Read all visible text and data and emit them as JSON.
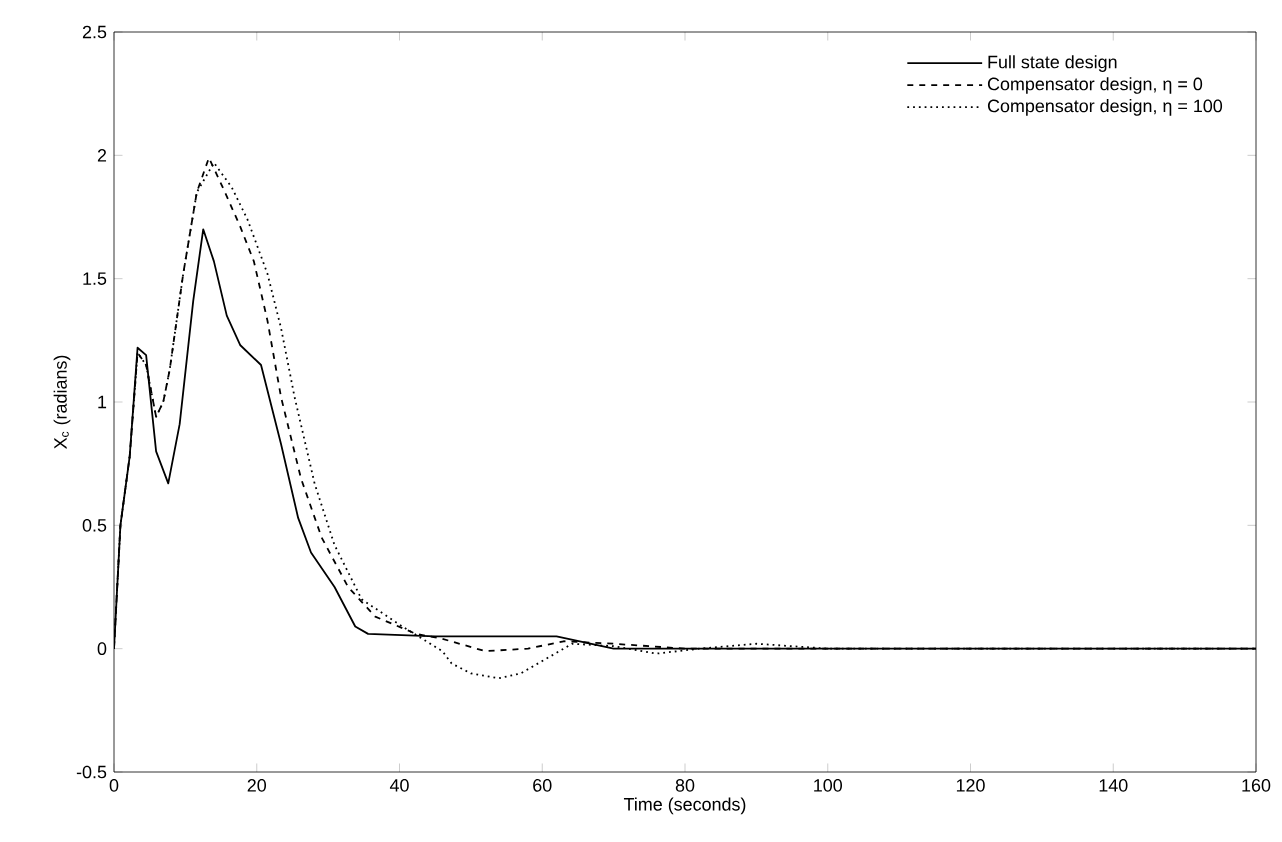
{
  "chart_data": {
    "type": "line",
    "xlabel": "Time (seconds)",
    "ylabel": "X$_{c}$ (radians)",
    "xlim": [
      0,
      160
    ],
    "ylim": [
      -0.5,
      2.5
    ],
    "xticks": [
      0,
      20,
      40,
      60,
      80,
      100,
      120,
      140,
      160
    ],
    "yticks": [
      -0.5,
      0,
      0.5,
      1,
      1.5,
      2,
      2.5
    ],
    "legend": "top right",
    "grid": false,
    "marker": "none",
    "series": [
      {
        "name": "Full state design",
        "color": "#000000",
        "line_style": "solid",
        "x": [
          0,
          0.9,
          2.2,
          3.3,
          4.5,
          5.9,
          7.6,
          9.2,
          11.1,
          12.5,
          14,
          15.8,
          17.7,
          20.6,
          23.4,
          25.8,
          27.6,
          30.9,
          33.8,
          35.6,
          45,
          55,
          62,
          70,
          80,
          100,
          120,
          140,
          160
        ],
        "values": [
          0,
          0.5,
          0.78,
          1.22,
          1.19,
          0.8,
          0.67,
          0.91,
          1.41,
          1.7,
          1.57,
          1.35,
          1.23,
          1.15,
          0.83,
          0.53,
          0.39,
          0.25,
          0.09,
          0.06,
          0.05,
          0.05,
          0.05,
          0,
          0,
          0,
          0,
          0,
          0
        ]
      },
      {
        "name": "Compensator design, η = 0",
        "color": "#000000",
        "line_style": "dashed",
        "x": [
          0,
          0.9,
          2.2,
          3.3,
          4.5,
          5.9,
          6.9,
          7.8,
          9.7,
          11.6,
          13.3,
          15.4,
          17.7,
          19.6,
          21.5,
          23.4,
          26.2,
          29.1,
          32.8,
          36.6,
          42.3,
          46,
          52,
          58,
          63,
          70,
          80,
          100,
          120,
          140,
          160
        ],
        "values": [
          0,
          0.5,
          0.78,
          1.2,
          1.15,
          0.94,
          1.0,
          1.13,
          1.52,
          1.85,
          1.99,
          1.86,
          1.71,
          1.57,
          1.33,
          1.02,
          0.69,
          0.45,
          0.25,
          0.13,
          0.06,
          0.04,
          -0.01,
          0,
          0.03,
          0.02,
          0,
          0,
          0,
          0,
          0
        ]
      },
      {
        "name": "Compensator design, η = 100",
        "color": "#000000",
        "line_style": "dotted",
        "x": [
          0,
          0.9,
          2.2,
          3.3,
          4.5,
          5.9,
          6.9,
          7.8,
          9.7,
          11.6,
          14,
          16.5,
          18.7,
          21.5,
          23.4,
          25.3,
          28.1,
          30.9,
          34.7,
          40.4,
          46,
          47.3,
          50,
          53.9,
          57,
          60,
          64.2,
          70,
          76,
          82,
          90,
          100,
          120,
          140,
          160
        ],
        "values": [
          0,
          0.5,
          0.78,
          1.2,
          1.15,
          0.94,
          1.0,
          1.13,
          1.52,
          1.85,
          1.97,
          1.87,
          1.74,
          1.52,
          1.3,
          1.02,
          0.67,
          0.42,
          0.2,
          0.09,
          -0.01,
          -0.06,
          -0.1,
          -0.12,
          -0.1,
          -0.05,
          0.02,
          0.01,
          -0.02,
          0,
          0.02,
          0,
          0,
          0,
          0
        ]
      }
    ]
  }
}
